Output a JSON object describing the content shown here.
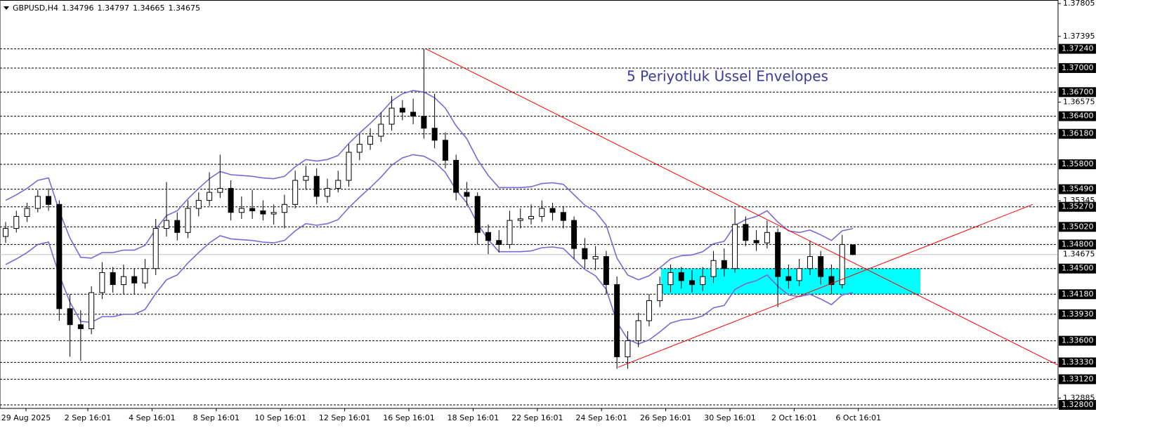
{
  "chart_data": {
    "type": "candlestick",
    "symbol": "GBPUSD,H4",
    "annotation": "5 Periyotluk Üssel Envelopes",
    "ylim": [
      1.328,
      1.37805
    ],
    "yticks": [
      1.37805,
      1.37395,
      1.36575,
      1.35345,
      1.32885
    ],
    "levels": [
      {
        "value": 1.3724,
        "label": "1.37240"
      },
      {
        "value": 1.37,
        "label": "1.37000"
      },
      {
        "value": 1.367,
        "label": "1.36700"
      },
      {
        "value": 1.364,
        "label": "1.36400"
      },
      {
        "value": 1.3618,
        "label": "1.36180"
      },
      {
        "value": 1.358,
        "label": "1.35800"
      },
      {
        "value": 1.3549,
        "label": "1.35490"
      },
      {
        "value": 1.3527,
        "label": "1.35270"
      },
      {
        "value": 1.3502,
        "label": "1.35020"
      },
      {
        "value": 1.348,
        "label": "1.34800"
      },
      {
        "value": 1.345,
        "label": "1.34500"
      },
      {
        "value": 1.3418,
        "label": "1.34180"
      },
      {
        "value": 1.3393,
        "label": "1.33930"
      },
      {
        "value": 1.336,
        "label": "1.33600"
      },
      {
        "value": 1.3333,
        "label": "1.33330"
      },
      {
        "value": 1.3312,
        "label": "1.33120"
      },
      {
        "value": 1.328,
        "label": "1.32800"
      }
    ],
    "current_price": 1.34675,
    "x_labels": [
      "29 Aug 2025",
      "2 Sep 16:01",
      "4 Sep 16:01",
      "8 Sep 16:01",
      "10 Sep 16:01",
      "12 Sep 16:01",
      "16 Sep 16:01",
      "18 Sep 16:01",
      "22 Sep 16:01",
      "24 Sep 16:01",
      "26 Sep 16:01",
      "30 Sep 16:01",
      "2 Oct 16:01",
      "6 Oct 16:01"
    ],
    "bull_color": "#ffffff",
    "bear_color": "#000000",
    "envelope_color": "#7b68d8",
    "trendline_color": "#ff0000",
    "rectangle_color": "#00ffff",
    "trendlines": [
      [
        1.3724,
        1.333
      ],
      [
        1.3327,
        1.353
      ]
    ],
    "rectangle": {
      "top": 1.345,
      "bottom": 1.3418
    },
    "candles": [
      [
        1.349,
        1.3508,
        1.3482,
        1.35
      ],
      [
        1.35,
        1.3522,
        1.3495,
        1.3515
      ],
      [
        1.3515,
        1.3532,
        1.3508,
        1.3525
      ],
      [
        1.3525,
        1.3548,
        1.352,
        1.354
      ],
      [
        1.354,
        1.355,
        1.3522,
        1.353
      ],
      [
        1.353,
        1.3535,
        1.3385,
        1.34
      ],
      [
        1.34,
        1.3418,
        1.334,
        1.338
      ],
      [
        1.338,
        1.3398,
        1.3335,
        1.3375
      ],
      [
        1.3375,
        1.3428,
        1.3368,
        1.342
      ],
      [
        1.342,
        1.3458,
        1.3412,
        1.3445
      ],
      [
        1.3445,
        1.3452,
        1.342,
        1.343
      ],
      [
        1.343,
        1.3455,
        1.3418,
        1.344
      ],
      [
        1.344,
        1.345,
        1.3418,
        1.3432
      ],
      [
        1.3432,
        1.3462,
        1.3425,
        1.345
      ],
      [
        1.345,
        1.3512,
        1.3442,
        1.35
      ],
      [
        1.35,
        1.3558,
        1.349,
        1.351
      ],
      [
        1.351,
        1.352,
        1.3485,
        1.3495
      ],
      [
        1.3495,
        1.3535,
        1.3488,
        1.3525
      ],
      [
        1.3525,
        1.3545,
        1.3515,
        1.3535
      ],
      [
        1.3535,
        1.357,
        1.3528,
        1.3545
      ],
      [
        1.3545,
        1.3592,
        1.3538,
        1.355
      ],
      [
        1.355,
        1.356,
        1.351,
        1.352
      ],
      [
        1.352,
        1.354,
        1.3512,
        1.3525
      ],
      [
        1.3525,
        1.3548,
        1.3512,
        1.3522
      ],
      [
        1.3522,
        1.3535,
        1.351,
        1.3518
      ],
      [
        1.3518,
        1.353,
        1.3505,
        1.352
      ],
      [
        1.352,
        1.3542,
        1.35,
        1.353
      ],
      [
        1.353,
        1.3572,
        1.3525,
        1.356
      ],
      [
        1.356,
        1.3578,
        1.3548,
        1.3565
      ],
      [
        1.3565,
        1.3575,
        1.353,
        1.354
      ],
      [
        1.354,
        1.3562,
        1.3532,
        1.355
      ],
      [
        1.355,
        1.3572,
        1.3545,
        1.356
      ],
      [
        1.356,
        1.3605,
        1.3552,
        1.3595
      ],
      [
        1.3595,
        1.3618,
        1.3585,
        1.3605
      ],
      [
        1.3605,
        1.3625,
        1.3598,
        1.3615
      ],
      [
        1.3615,
        1.3645,
        1.3608,
        1.363
      ],
      [
        1.363,
        1.3665,
        1.3622,
        1.365
      ],
      [
        1.365,
        1.366,
        1.3635,
        1.3645
      ],
      [
        1.3645,
        1.3662,
        1.363,
        1.364
      ],
      [
        1.364,
        1.3724,
        1.3612,
        1.3625
      ],
      [
        1.3625,
        1.3668,
        1.36,
        1.361
      ],
      [
        1.361,
        1.362,
        1.3575,
        1.3585
      ],
      [
        1.3585,
        1.3592,
        1.3535,
        1.3545
      ],
      [
        1.3545,
        1.3558,
        1.3528,
        1.354
      ],
      [
        1.354,
        1.3545,
        1.348,
        1.3495
      ],
      [
        1.3495,
        1.3505,
        1.3468,
        1.3485
      ],
      [
        1.3485,
        1.3498,
        1.347,
        1.348
      ],
      [
        1.348,
        1.3522,
        1.3475,
        1.351
      ],
      [
        1.351,
        1.3525,
        1.35,
        1.3512
      ],
      [
        1.3512,
        1.353,
        1.3505,
        1.3515
      ],
      [
        1.3515,
        1.3535,
        1.3508,
        1.3525
      ],
      [
        1.3525,
        1.3532,
        1.351,
        1.352
      ],
      [
        1.352,
        1.3528,
        1.35,
        1.351
      ],
      [
        1.351,
        1.3515,
        1.3462,
        1.3475
      ],
      [
        1.3475,
        1.3488,
        1.345,
        1.3462
      ],
      [
        1.3462,
        1.3478,
        1.3448,
        1.3465
      ],
      [
        1.3465,
        1.3472,
        1.3418,
        1.343
      ],
      [
        1.343,
        1.344,
        1.3325,
        1.334
      ],
      [
        1.334,
        1.3372,
        1.3325,
        1.336
      ],
      [
        1.336,
        1.3395,
        1.3352,
        1.3385
      ],
      [
        1.3385,
        1.3418,
        1.3378,
        1.341
      ],
      [
        1.341,
        1.344,
        1.3402,
        1.343
      ],
      [
        1.343,
        1.3455,
        1.342,
        1.3445
      ],
      [
        1.3445,
        1.3452,
        1.3425,
        1.3435
      ],
      [
        1.3435,
        1.3448,
        1.342,
        1.343
      ],
      [
        1.343,
        1.3452,
        1.3422,
        1.344
      ],
      [
        1.344,
        1.3472,
        1.3432,
        1.346
      ],
      [
        1.346,
        1.3475,
        1.344,
        1.345
      ],
      [
        1.345,
        1.3525,
        1.3445,
        1.3505
      ],
      [
        1.3505,
        1.3515,
        1.3478,
        1.3485
      ],
      [
        1.3485,
        1.3498,
        1.3472,
        1.3482
      ],
      [
        1.3482,
        1.351,
        1.3475,
        1.3495
      ],
      [
        1.3495,
        1.35,
        1.3402,
        1.344
      ],
      [
        1.344,
        1.3455,
        1.3425,
        1.3435
      ],
      [
        1.3435,
        1.3462,
        1.3428,
        1.345
      ],
      [
        1.345,
        1.3485,
        1.3442,
        1.3465
      ],
      [
        1.3465,
        1.3472,
        1.343,
        1.344
      ],
      [
        1.344,
        1.3455,
        1.3418,
        1.343
      ],
      [
        1.343,
        1.3492,
        1.3425,
        1.348
      ],
      [
        1.34796,
        1.34797,
        1.34665,
        1.34675
      ]
    ],
    "envelope_upper": [
      1.3535,
      1.3542,
      1.355,
      1.356,
      1.3563,
      1.3522,
      1.3488,
      1.3464,
      1.3463,
      1.347,
      1.347,
      1.3473,
      1.3473,
      1.3479,
      1.3499,
      1.3516,
      1.3522,
      1.3537,
      1.355,
      1.3562,
      1.3571,
      1.3567,
      1.3566,
      1.3565,
      1.3563,
      1.3562,
      1.3565,
      1.3577,
      1.3586,
      1.3584,
      1.3586,
      1.3591,
      1.3606,
      1.3619,
      1.3631,
      1.3644,
      1.3659,
      1.3668,
      1.3672,
      1.367,
      1.3663,
      1.365,
      1.3628,
      1.3612,
      1.3586,
      1.3566,
      1.3551,
      1.3551,
      1.3551,
      1.3552,
      1.3556,
      1.3557,
      1.3555,
      1.3542,
      1.3529,
      1.3521,
      1.3504,
      1.3463,
      1.3442,
      1.3436,
      1.3441,
      1.3451,
      1.3462,
      1.3466,
      1.3467,
      1.3471,
      1.3481,
      1.3484,
      1.3504,
      1.3511,
      1.3515,
      1.3522,
      1.3508,
      1.3497,
      1.3495,
      1.3498,
      1.3492,
      1.3485,
      1.3497,
      1.35
    ],
    "envelope_lower": [
      1.3455,
      1.3462,
      1.347,
      1.348,
      1.3483,
      1.3442,
      1.3408,
      1.3384,
      1.3383,
      1.339,
      1.339,
      1.3393,
      1.3393,
      1.3399,
      1.3419,
      1.3436,
      1.3442,
      1.3457,
      1.347,
      1.3482,
      1.3491,
      1.3487,
      1.3486,
      1.3485,
      1.3483,
      1.3482,
      1.3485,
      1.3497,
      1.3506,
      1.3504,
      1.3506,
      1.3511,
      1.3526,
      1.3539,
      1.3551,
      1.3564,
      1.3579,
      1.3588,
      1.3592,
      1.359,
      1.3583,
      1.357,
      1.3548,
      1.3532,
      1.3506,
      1.3486,
      1.3471,
      1.3471,
      1.3471,
      1.3472,
      1.3476,
      1.3477,
      1.3475,
      1.3462,
      1.3449,
      1.3441,
      1.3424,
      1.3383,
      1.3362,
      1.3356,
      1.3361,
      1.3371,
      1.3382,
      1.3386,
      1.3387,
      1.3391,
      1.3401,
      1.3404,
      1.3424,
      1.3431,
      1.3435,
      1.3442,
      1.3428,
      1.3417,
      1.3415,
      1.3418,
      1.3412,
      1.3405,
      1.3417,
      1.342
    ]
  }
}
